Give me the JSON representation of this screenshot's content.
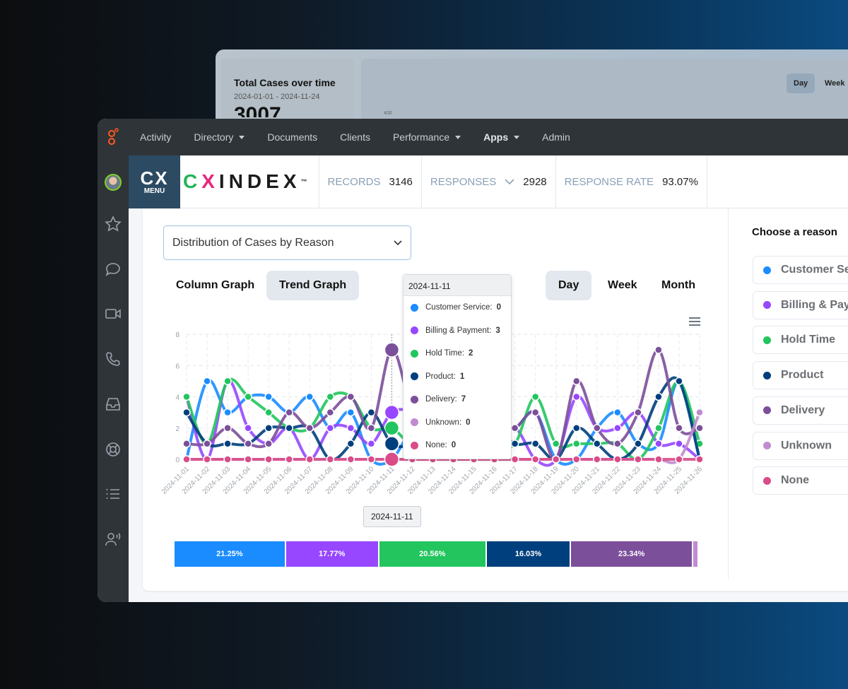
{
  "background_window": {
    "card_title": "Total Cases over time",
    "card_range": "2024-01-01 - 2024-11-24",
    "card_value": "3007",
    "axis_tick": "400",
    "buttons": [
      "Day",
      "Week"
    ]
  },
  "nav": {
    "items": [
      {
        "label": "Activity",
        "dropdown": false
      },
      {
        "label": "Directory",
        "dropdown": true
      },
      {
        "label": "Documents",
        "dropdown": false
      },
      {
        "label": "Clients",
        "dropdown": false
      },
      {
        "label": "Performance",
        "dropdown": true
      },
      {
        "label": "Apps",
        "dropdown": true,
        "active": true
      },
      {
        "label": "Admin",
        "dropdown": false
      }
    ]
  },
  "sidebar": {
    "icons": [
      "avatar",
      "star-icon",
      "chat-icon",
      "video-icon",
      "phone-icon",
      "inbox-icon",
      "support-icon",
      "list-icon",
      "users-voice-icon"
    ]
  },
  "header": {
    "menu_logo": "CX",
    "menu_label": "MENU",
    "brand_c": "C",
    "brand_x": "X",
    "brand_rest": "INDEX",
    "brand_tm": "™",
    "records_label": "RECORDS",
    "records_value": "3146",
    "responses_label": "RESPONSES",
    "responses_value": "2928",
    "rate_label": "RESPONSE RATE",
    "rate_value": "93.07%"
  },
  "main": {
    "report_select": "Distribution of Cases by Reason",
    "graph_tabs": [
      {
        "label": "Column Graph",
        "active": false
      },
      {
        "label": "Trend Graph",
        "active": true
      }
    ],
    "period_tabs": [
      {
        "label": "Day",
        "active": true
      },
      {
        "label": "Week",
        "active": false
      },
      {
        "label": "Month",
        "active": false
      }
    ]
  },
  "right_panel": {
    "title": "Choose a reason",
    "reasons": [
      {
        "label": "Customer Service",
        "color": "#1a8cff"
      },
      {
        "label": "Billing & Payment",
        "color": "#9747ff"
      },
      {
        "label": "Hold Time",
        "color": "#22c55e"
      },
      {
        "label": "Product",
        "color": "#003f7d"
      },
      {
        "label": "Delivery",
        "color": "#7b4f9a"
      },
      {
        "label": "Unknown",
        "color": "#c08bd0"
      },
      {
        "label": "None",
        "color": "#d94c88"
      }
    ]
  },
  "tooltip": {
    "date": "2024-11-11",
    "rows": [
      {
        "label": "Customer Service:",
        "value": "0",
        "color": "#1a8cff"
      },
      {
        "label": "Billing & Payment:",
        "value": "3",
        "color": "#9747ff"
      },
      {
        "label": "Hold Time:",
        "value": "2",
        "color": "#22c55e"
      },
      {
        "label": "Product:",
        "value": "1",
        "color": "#003f7d"
      },
      {
        "label": "Delivery:",
        "value": "7",
        "color": "#7b4f9a"
      },
      {
        "label": "Unknown:",
        "value": "0",
        "color": "#c08bd0"
      },
      {
        "label": "None:",
        "value": "0",
        "color": "#d94c88"
      }
    ],
    "x_label": "2024-11-11"
  },
  "chart_data": {
    "type": "line",
    "title": "Distribution of Cases by Reason",
    "ylim": [
      0,
      8
    ],
    "yticks": [
      "0",
      "2",
      "4",
      "6",
      "8"
    ],
    "grid": true,
    "highlight_index": 10,
    "x": [
      "2024-11-01",
      "2024-11-02",
      "2024-11-03",
      "2024-11-04",
      "2024-11-05",
      "2024-11-06",
      "2024-11-07",
      "2024-11-08",
      "2024-11-09",
      "2024-11-10",
      "2024-11-11",
      "2024-11-12",
      "2024-11-13",
      "2024-11-14",
      "2024-11-15",
      "2024-11-16",
      "2024-11-17",
      "2024-11-18",
      "2024-11-19",
      "2024-11-20",
      "2024-11-21",
      "2024-11-22",
      "2024-11-23",
      "2024-11-24",
      "2024-11-25",
      "2024-11-26"
    ],
    "series": [
      {
        "name": "Customer Service",
        "color": "#1a8cff",
        "values": [
          0,
          5,
          3,
          4,
          4,
          3,
          4,
          2,
          3,
          0,
          0,
          2,
          3,
          2,
          3,
          2,
          2,
          3,
          0,
          0,
          2,
          3,
          1,
          1,
          5,
          0
        ]
      },
      {
        "name": "Billing & Payment",
        "color": "#9747ff",
        "values": [
          4,
          0,
          5,
          2,
          1,
          2,
          0,
          2,
          2,
          1,
          3,
          3,
          2,
          1,
          2,
          1,
          2,
          0,
          0,
          4,
          2,
          2,
          3,
          1,
          1,
          0
        ]
      },
      {
        "name": "Hold Time",
        "color": "#22c55e",
        "values": [
          4,
          1,
          5,
          4,
          3,
          2,
          2,
          4,
          4,
          2,
          2,
          1,
          2,
          3,
          2,
          1,
          1,
          4,
          1,
          1,
          1,
          1,
          0,
          2,
          5,
          1
        ]
      },
      {
        "name": "Product",
        "color": "#003f7d",
        "values": [
          3,
          1,
          1,
          1,
          2,
          2,
          2,
          0,
          1,
          3,
          1,
          1,
          2,
          1,
          1,
          2,
          1,
          1,
          0,
          2,
          1,
          0,
          1,
          4,
          5,
          0
        ]
      },
      {
        "name": "Delivery",
        "color": "#7b4f9a",
        "values": [
          1,
          1,
          2,
          1,
          1,
          3,
          2,
          3,
          4,
          2,
          7,
          3,
          1,
          2,
          3,
          2,
          2,
          3,
          0,
          5,
          2,
          1,
          3,
          7,
          2,
          2
        ]
      },
      {
        "name": "Unknown",
        "color": "#c08bd0",
        "values": [
          0,
          0,
          0,
          0,
          0,
          0,
          0,
          0,
          0,
          0,
          0,
          0,
          0,
          0,
          0,
          0,
          0,
          0,
          0,
          0,
          0,
          0,
          0,
          0,
          0,
          3
        ]
      },
      {
        "name": "None",
        "color": "#d94c88",
        "values": [
          0,
          0,
          0,
          0,
          0,
          0,
          0,
          0,
          0,
          0,
          0,
          0,
          0,
          0,
          0,
          0,
          0,
          0,
          0,
          0,
          0,
          0,
          0,
          0,
          0,
          0
        ]
      }
    ]
  },
  "share_bar": [
    {
      "name": "Customer Service",
      "pct": 21.25,
      "label": "21.25%",
      "color": "#1a8cff"
    },
    {
      "name": "Billing & Payment",
      "pct": 17.77,
      "label": "17.77%",
      "color": "#9747ff"
    },
    {
      "name": "Hold Time",
      "pct": 20.56,
      "label": "20.56%",
      "color": "#22c55e"
    },
    {
      "name": "Product",
      "pct": 16.03,
      "label": "16.03%",
      "color": "#003f7d"
    },
    {
      "name": "Delivery",
      "pct": 23.34,
      "label": "23.34%",
      "color": "#7b4f9a"
    },
    {
      "name": "Unknown",
      "pct": 1.05,
      "label": "",
      "color": "#c08bd0"
    }
  ]
}
